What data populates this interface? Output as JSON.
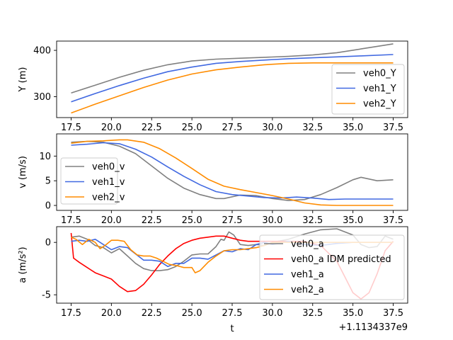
{
  "chart_data": [
    {
      "type": "line",
      "ylabel": "Y (m)",
      "xlim": [
        16.6,
        38.4
      ],
      "ylim": [
        255,
        420
      ],
      "xticks": [
        17.5,
        20.0,
        22.5,
        25.0,
        27.5,
        30.0,
        32.5,
        35.0,
        37.5
      ],
      "yticks": [
        300,
        400
      ],
      "legend": "lower-right",
      "series": [
        {
          "name": "veh0_Y",
          "color": "#808080",
          "x": [
            17.5,
            19,
            20.5,
            22,
            23.5,
            25,
            26.5,
            28,
            29.5,
            31,
            32.5,
            34,
            35.5,
            37.5
          ],
          "y": [
            308,
            325,
            342,
            357,
            369,
            377,
            381,
            383,
            385,
            387,
            390,
            395,
            403,
            414
          ]
        },
        {
          "name": "veh1_Y",
          "color": "#4169e1",
          "x": [
            17.5,
            19,
            20.5,
            22,
            23.5,
            25,
            26.5,
            28,
            29.5,
            31,
            32.5,
            34,
            35.5,
            37.5
          ],
          "y": [
            289,
            307,
            324,
            340,
            354,
            364,
            372,
            376,
            379,
            382,
            384,
            386,
            388,
            391
          ]
        },
        {
          "name": "veh2_Y",
          "color": "#ff8c00",
          "x": [
            17.5,
            19,
            20.5,
            22,
            23.5,
            25,
            26.5,
            28,
            29.5,
            31,
            32.5,
            34,
            35.5,
            37.5
          ],
          "y": [
            265,
            284,
            302,
            320,
            336,
            349,
            358,
            364,
            369,
            372,
            373,
            373,
            373,
            373
          ]
        }
      ]
    },
    {
      "type": "line",
      "ylabel": "v (m/s)",
      "xlim": [
        16.6,
        38.4
      ],
      "ylim": [
        -1,
        14.5
      ],
      "xticks": [
        17.5,
        20.0,
        22.5,
        25.0,
        27.5,
        30.0,
        32.5,
        35.0,
        37.5
      ],
      "yticks": [
        0,
        5,
        10
      ],
      "legend": "center-left",
      "series": [
        {
          "name": "veh0_v",
          "color": "#808080",
          "x": [
            17.5,
            18.5,
            19.5,
            20.5,
            21.5,
            22.5,
            23.5,
            24.5,
            25.5,
            26.5,
            27,
            28,
            29,
            30,
            31,
            32,
            33,
            34,
            35,
            35.5,
            36.5,
            37.5
          ],
          "y": [
            12.8,
            13,
            12.8,
            12,
            10.5,
            8,
            5.5,
            3.5,
            2.2,
            1.4,
            1.4,
            2.1,
            2,
            1.4,
            1,
            1.2,
            2.2,
            3.6,
            5.2,
            5.7,
            5,
            5.2
          ]
        },
        {
          "name": "veh1_v",
          "color": "#4169e1",
          "x": [
            17.5,
            18.5,
            19.5,
            20.5,
            21.5,
            22.5,
            23.5,
            24.5,
            25.5,
            26.5,
            27.5,
            28.5,
            29.5,
            30.5,
            31.5,
            32.5,
            33.5,
            34.5,
            35.5,
            37.5
          ],
          "y": [
            12.2,
            12.4,
            12.7,
            12.5,
            11.4,
            9.8,
            7.8,
            5.9,
            4.2,
            2.8,
            2.2,
            1.9,
            1.6,
            1.5,
            1.7,
            1.5,
            1.2,
            1.3,
            1.3,
            1.3
          ]
        },
        {
          "name": "veh2_v",
          "color": "#ff8c00",
          "x": [
            17.5,
            18.5,
            19.5,
            20.5,
            21,
            22,
            23,
            24,
            25,
            26,
            27,
            28,
            29,
            30,
            31,
            32,
            33,
            34,
            35,
            37.5
          ],
          "y": [
            12.6,
            13,
            13.1,
            13.3,
            13.3,
            12.8,
            11.5,
            9.6,
            7.5,
            5.3,
            3.9,
            3.2,
            2.6,
            2,
            1.3,
            0.5,
            0.1,
            0,
            0,
            0
          ]
        }
      ]
    },
    {
      "type": "line",
      "xlabel": "t",
      "ylabel": "a (m/s²)",
      "offset_label": "+1.1134337e9",
      "xlim": [
        16.6,
        38.4
      ],
      "ylim": [
        -5.8,
        1.5
      ],
      "xticks": [
        17.5,
        20.0,
        22.5,
        25.0,
        27.5,
        30.0,
        32.5,
        35.0,
        37.5
      ],
      "yticks": [
        -5,
        0
      ],
      "legend": "lower-right",
      "series": [
        {
          "name": "veh0_a",
          "color": "#808080",
          "x": [
            17.5,
            18,
            18.5,
            19,
            19.5,
            20,
            20.5,
            21,
            21.5,
            22,
            22.5,
            23,
            23.5,
            24,
            24.5,
            25,
            25.5,
            26,
            26.5,
            26.8,
            27,
            27.3,
            27.6,
            28,
            28.5,
            29,
            29.5,
            30,
            31,
            32,
            33,
            34,
            35,
            35.5,
            36,
            36.5,
            37,
            37.5
          ],
          "y": [
            0.5,
            0.6,
            0.3,
            -0.3,
            -0.5,
            -1,
            -0.6,
            -1.3,
            -2,
            -2.5,
            -2.7,
            -2.7,
            -2.6,
            -2.3,
            -1.8,
            -1.2,
            -1.1,
            -1.1,
            -0.4,
            0.3,
            0.2,
            1,
            0.7,
            -0.2,
            -0.3,
            -0.2,
            -0.3,
            0,
            0.3,
            0.8,
            1.2,
            1.3,
            0.7,
            -0.2,
            -0.5,
            -0.4,
            0.6,
            0.3
          ]
        },
        {
          "name": "veh0_a IDM predicted",
          "color": "#ff0000",
          "x": [
            17.5,
            17.65,
            18,
            18.5,
            19,
            19.5,
            20,
            20.5,
            21,
            21.5,
            22,
            22.5,
            23,
            23.5,
            24,
            24.5,
            25,
            25.5,
            26,
            26.5,
            27,
            27.5,
            28,
            28.5,
            29,
            30,
            31,
            32,
            33,
            34,
            34.5,
            35,
            35.5,
            36,
            36.5,
            37,
            37.5
          ],
          "y": [
            0.9,
            -1.5,
            -1.9,
            -2.4,
            -2.9,
            -3.2,
            -3.5,
            -4.2,
            -4.7,
            -4.6,
            -4,
            -3.1,
            -2.1,
            -1.3,
            -0.6,
            -0.1,
            0.2,
            0.4,
            0.5,
            0.6,
            0.6,
            0.4,
            0.2,
            0.1,
            0.1,
            0.1,
            0.1,
            0.1,
            -0.3,
            -1.8,
            -3.3,
            -4.8,
            -5.4,
            -4.8,
            -3,
            -0.8,
            0.1
          ]
        },
        {
          "name": "veh1_a",
          "color": "#4169e1",
          "x": [
            17.5,
            18,
            18.5,
            19,
            19.5,
            20,
            20.5,
            21,
            21.5,
            22,
            22.5,
            23,
            23.5,
            24,
            24.5,
            25,
            25.5,
            26,
            26.5,
            27,
            27.5,
            28,
            28.5,
            29,
            29.5,
            30,
            31,
            32,
            33,
            34,
            35,
            36,
            37,
            37.5
          ],
          "y": [
            0.1,
            0.2,
            0.1,
            0.3,
            -0.2,
            -0.7,
            -0.4,
            -0.5,
            -1.1,
            -1.7,
            -1.7,
            -1.8,
            -2.3,
            -2,
            -2,
            -1.5,
            -1.5,
            -1.6,
            -1.2,
            -0.8,
            -0.9,
            -0.6,
            -0.7,
            -0.2,
            0,
            -0.2,
            0.1,
            -0.2,
            -0.3,
            -0.1,
            0,
            0,
            0,
            0
          ]
        },
        {
          "name": "veh2_a",
          "color": "#ff8c00",
          "x": [
            17.5,
            17.8,
            18.2,
            18.6,
            19,
            19.3,
            19.6,
            20,
            20.4,
            20.8,
            21.2,
            21.6,
            22,
            22.4,
            22.8,
            23.2,
            23.6,
            24,
            24.5,
            25,
            25.2,
            25.5,
            26,
            26.5,
            27,
            27.5,
            28,
            28.5,
            29,
            29.5,
            30,
            31,
            32,
            33,
            34,
            35,
            36,
            37,
            37.5
          ],
          "y": [
            0.5,
            0.3,
            -0.2,
            0.3,
            0,
            -0.6,
            -0.3,
            0.2,
            0.2,
            0.1,
            -0.7,
            -1.2,
            -1.3,
            -1.3,
            -1.5,
            -1.8,
            -2.1,
            -2.2,
            -2.4,
            -2.4,
            -2.9,
            -2.7,
            -1.9,
            -1.3,
            -0.8,
            -0.7,
            -0.7,
            -0.6,
            -0.5,
            -0.3,
            0,
            0,
            0,
            0,
            0,
            0,
            0,
            0,
            0
          ]
        }
      ]
    }
  ]
}
